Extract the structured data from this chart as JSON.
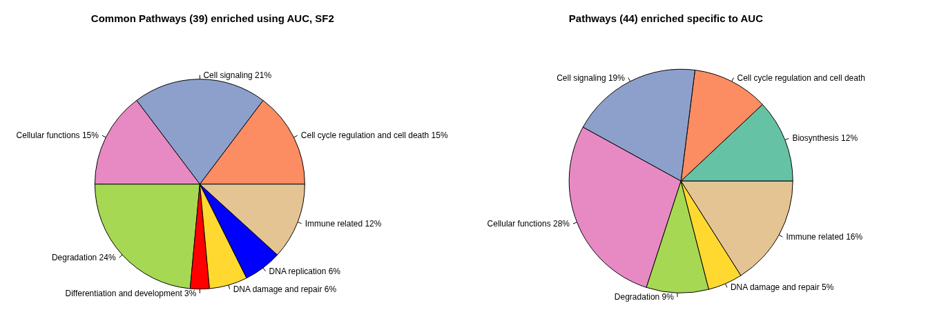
{
  "chart_data": [
    {
      "type": "pie",
      "title": "Common Pathways (39) enriched using AUC, SF2",
      "categories": [
        "Cell cycle regulation and cell death",
        "Cell signaling",
        "Cellular functions",
        "Degradation",
        "Differentiation and development",
        "DNA damage and repair",
        "DNA replication",
        "Immune related"
      ],
      "values": [
        15,
        21,
        15,
        24,
        3,
        6,
        6,
        12
      ],
      "value_labels": [
        "15%",
        "21%",
        "15%",
        "24%",
        "3%",
        "6%",
        "6%",
        "12%"
      ],
      "colors": [
        "#fc8d62",
        "#8da0cb",
        "#e78ac3",
        "#a6d854",
        "#ff0000",
        "#ffd92f",
        "#0000ff",
        "#e5c494"
      ]
    },
    {
      "type": "pie",
      "title": "Pathways (44) enriched specific to AUC",
      "categories": [
        "Biosynthesis",
        "Cell cycle regulation and cell death",
        "Cell signaling",
        "Cellular functions",
        "Degradation",
        "DNA damage and repair",
        "Immune related"
      ],
      "values": [
        12,
        11,
        19,
        28,
        9,
        5,
        16
      ],
      "value_labels": [
        "12%",
        null,
        "19%",
        "28%",
        "9%",
        "5%",
        "16%"
      ],
      "colors": [
        "#66c2a5",
        "#fc8d62",
        "#8da0cb",
        "#e78ac3",
        "#a6d854",
        "#ffd92f",
        "#e5c494"
      ]
    }
  ]
}
